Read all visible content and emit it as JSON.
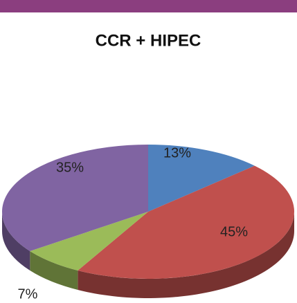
{
  "chart_data": {
    "type": "pie",
    "title": "CCR + HIPEC",
    "values": [
      13,
      45,
      7,
      35
    ],
    "value_labels": [
      "13%",
      "45%",
      "7%",
      "35%"
    ],
    "colors": [
      "#4f81bd",
      "#c0504d",
      "#9bbb59",
      "#8064a2"
    ]
  }
}
